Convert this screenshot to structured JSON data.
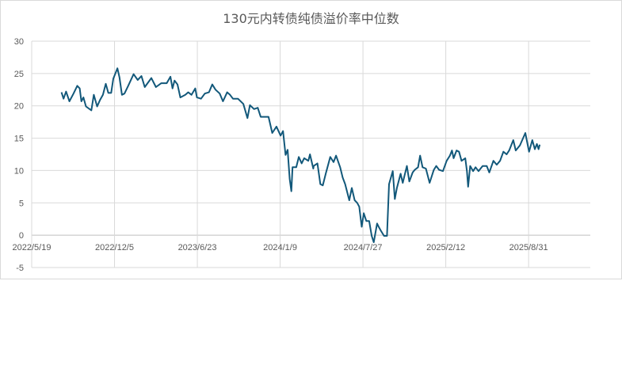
{
  "chart_data": {
    "type": "line",
    "title": "130元内转债纯债溢价率中位数",
    "xlabel": "",
    "ylabel": "",
    "ylim": [
      -5,
      30
    ],
    "yticks": [
      "-5",
      "0",
      "5",
      "10",
      "15",
      "20",
      "25",
      "30"
    ],
    "xlim": [
      "2022-05-19",
      "2026-01-27"
    ],
    "xticks": [
      "2022/5/19",
      "2022/12/5",
      "2023/6/23",
      "2024/1/9",
      "2024/7/27",
      "2025/2/12",
      "2025/8/31"
    ],
    "grid": true,
    "line_color": "#12587a",
    "series": [
      {
        "x": [
          "2022-07-30",
          "2022-08-04",
          "2022-08-10",
          "2022-08-18",
          "2022-08-28",
          "2022-09-06",
          "2022-09-12",
          "2022-09-16",
          "2022-09-21",
          "2022-09-27",
          "2022-10-10",
          "2022-10-16",
          "2022-10-24",
          "2022-10-31",
          "2022-11-07",
          "2022-11-14",
          "2022-11-20",
          "2022-11-27",
          "2022-12-02",
          "2022-12-12",
          "2022-12-17",
          "2022-12-23",
          "2022-12-29",
          "2023-01-07",
          "2023-01-20",
          "2023-01-30",
          "2023-02-08",
          "2023-02-16",
          "2023-03-04",
          "2023-03-15",
          "2023-03-28",
          "2023-04-10",
          "2023-04-19",
          "2023-04-24",
          "2023-04-29",
          "2023-05-06",
          "2023-05-13",
          "2023-05-25",
          "2023-06-01",
          "2023-06-09",
          "2023-06-18",
          "2023-06-22",
          "2023-07-02",
          "2023-07-11",
          "2023-07-21",
          "2023-07-29",
          "2023-08-06",
          "2023-08-16",
          "2023-08-24",
          "2023-09-03",
          "2023-09-10",
          "2023-09-17",
          "2023-09-29",
          "2023-10-12",
          "2023-10-22",
          "2023-10-28",
          "2023-11-07",
          "2023-11-16",
          "2023-11-23",
          "2023-12-05",
          "2023-12-12",
          "2023-12-21",
          "2023-12-31",
          "2024-01-10",
          "2024-01-16",
          "2024-01-22",
          "2024-01-27",
          "2024-02-01",
          "2024-02-05",
          "2024-02-08",
          "2024-02-17",
          "2024-02-23",
          "2024-03-01",
          "2024-03-07",
          "2024-03-17",
          "2024-03-21",
          "2024-03-29",
          "2024-03-30",
          "2024-04-08",
          "2024-04-15",
          "2024-04-21",
          "2024-04-28",
          "2024-05-09",
          "2024-05-17",
          "2024-05-23",
          "2024-06-02",
          "2024-06-08",
          "2024-06-14",
          "2024-06-24",
          "2024-06-30",
          "2024-07-07",
          "2024-07-13",
          "2024-07-18",
          "2024-07-24",
          "2024-07-29",
          "2024-08-04",
          "2024-08-11",
          "2024-08-17",
          "2024-08-22",
          "2024-08-30",
          "2024-09-03",
          "2024-09-08",
          "2024-09-16",
          "2024-09-23",
          "2024-09-28",
          "2024-10-07",
          "2024-10-12",
          "2024-10-17",
          "2024-10-26",
          "2024-10-31",
          "2024-11-10",
          "2024-11-16",
          "2024-11-24",
          "2024-11-29",
          "2024-12-07",
          "2024-12-12",
          "2024-12-18",
          "2024-12-26",
          "2025-01-04",
          "2025-01-14",
          "2025-01-20",
          "2025-01-27",
          "2025-02-05",
          "2025-02-14",
          "2025-02-22",
          "2025-02-27",
          "2025-03-03",
          "2025-03-10",
          "2025-03-16",
          "2025-03-22",
          "2025-03-31",
          "2025-04-04",
          "2025-04-07",
          "2025-04-12",
          "2025-04-19",
          "2025-04-25",
          "2025-05-02",
          "2025-05-12",
          "2025-05-22",
          "2025-05-28",
          "2025-06-07",
          "2025-06-15",
          "2025-06-23",
          "2025-07-01",
          "2025-07-09",
          "2025-07-15",
          "2025-07-25",
          "2025-07-31",
          "2025-08-10",
          "2025-08-23",
          "2025-09-01",
          "2025-09-09",
          "2025-09-15",
          "2025-09-20",
          "2025-09-24",
          "2025-09-27"
        ],
        "y": [
          22.1,
          21.1,
          22.2,
          20.7,
          21.9,
          23.1,
          22.7,
          20.7,
          21.3,
          19.9,
          19.3,
          21.7,
          19.9,
          20.9,
          21.7,
          23.4,
          22.0,
          22.0,
          24.2,
          25.8,
          24.4,
          21.7,
          21.9,
          23.1,
          24.9,
          24.0,
          24.6,
          22.9,
          24.3,
          22.9,
          23.5,
          23.5,
          24.5,
          22.7,
          23.9,
          23.3,
          21.3,
          21.7,
          22.1,
          21.7,
          22.7,
          21.3,
          21.1,
          21.9,
          22.1,
          23.3,
          22.5,
          21.9,
          20.7,
          22.1,
          21.7,
          21.1,
          21.1,
          20.3,
          18.1,
          20.1,
          19.5,
          19.7,
          18.3,
          18.3,
          18.3,
          15.8,
          16.8,
          15.4,
          16.1,
          12.4,
          13.2,
          8.7,
          6.8,
          10.5,
          10.5,
          12.1,
          11.1,
          11.9,
          11.5,
          12.5,
          10.3,
          10.7,
          11.1,
          7.9,
          7.7,
          9.5,
          12.1,
          11.3,
          12.3,
          10.5,
          8.9,
          7.9,
          5.4,
          7.3,
          5.4,
          5.0,
          4.4,
          1.3,
          3.4,
          2.2,
          2.2,
          -0.1,
          -1.1,
          1.8,
          1.3,
          0.7,
          -0.1,
          -0.1,
          7.9,
          9.9,
          5.6,
          7.3,
          9.5,
          8.1,
          10.7,
          8.3,
          9.7,
          10.1,
          10.5,
          12.3,
          10.5,
          10.3,
          8.1,
          10.1,
          10.7,
          10.1,
          9.9,
          11.5,
          12.3,
          13.1,
          11.9,
          13.1,
          12.9,
          11.5,
          11.9,
          9.9,
          7.5,
          10.7,
          9.9,
          10.5,
          9.9,
          10.7,
          10.7,
          9.7,
          11.5,
          10.9,
          11.5,
          12.9,
          12.5,
          13.1,
          14.7,
          13.1,
          13.9,
          15.8,
          12.9,
          14.7,
          13.3,
          14.1,
          13.3,
          14.0
        ]
      }
    ]
  }
}
